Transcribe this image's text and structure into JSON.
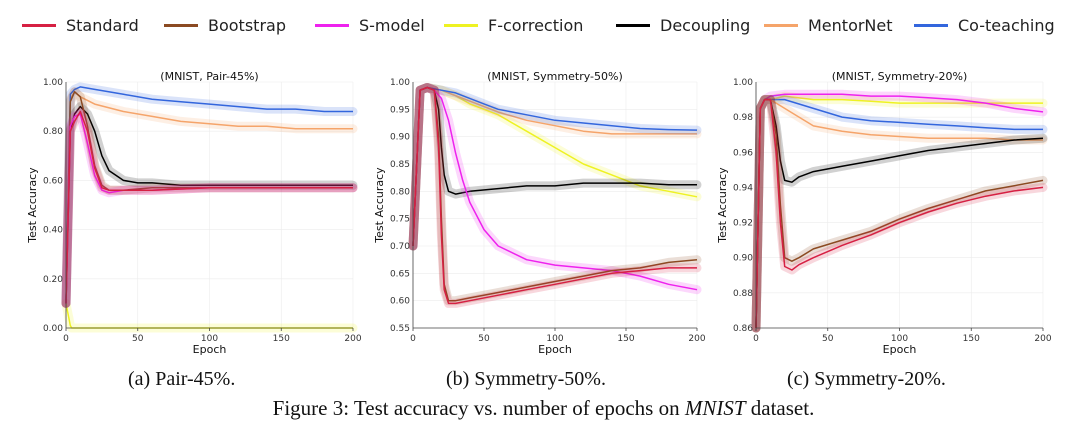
{
  "legend": {
    "items": [
      {
        "label": "Standard",
        "color": "#d62043"
      },
      {
        "label": "Bootstrap",
        "color": "#8b4a22"
      },
      {
        "label": "S-model",
        "color": "#ee22ee"
      },
      {
        "label": "F-correction",
        "color": "#eef222"
      },
      {
        "label": "Decoupling",
        "color": "#000000"
      },
      {
        "label": "MentorNet",
        "color": "#f5a46a"
      },
      {
        "label": "Co-teaching",
        "color": "#3366dd"
      }
    ]
  },
  "captions": {
    "a": "(a) Pair-45%.",
    "b": "(b) Symmetry-50%.",
    "c": "(c) Symmetry-20%.",
    "figure_prefix": "Figure 3: Test accuracy vs. number of epochs on ",
    "figure_dataset": "MNIST",
    "figure_suffix": " dataset."
  },
  "chart_data": [
    {
      "type": "line",
      "title": "(MNIST, Pair-45%)",
      "xlabel": "Epoch",
      "ylabel": "Test Accuracy",
      "xlim": [
        0,
        200
      ],
      "ylim": [
        0.0,
        1.0
      ],
      "xticks": [
        0,
        50,
        100,
        150,
        200
      ],
      "xtick_labels": [
        "0",
        "50",
        "100",
        "150",
        "200"
      ],
      "yticks": [
        0.0,
        0.2,
        0.4,
        0.6,
        0.8,
        1.0
      ],
      "ytick_labels": [
        "0.00",
        "0.20",
        "0.40",
        "0.60",
        "0.80",
        "1.00"
      ],
      "series": [
        {
          "name": "F-correction",
          "x": [
            0,
            1,
            2,
            3,
            4,
            5,
            200
          ],
          "y": [
            0.1,
            0.07,
            0.04,
            0.01,
            0.0,
            0.0,
            0.0
          ]
        },
        {
          "name": "MentorNet",
          "x": [
            0,
            3,
            6,
            10,
            20,
            40,
            60,
            80,
            100,
            120,
            140,
            160,
            180,
            200
          ],
          "y": [
            0.1,
            0.93,
            0.96,
            0.94,
            0.91,
            0.88,
            0.86,
            0.84,
            0.83,
            0.82,
            0.82,
            0.81,
            0.81,
            0.81
          ]
        },
        {
          "name": "Co-teaching",
          "x": [
            0,
            3,
            6,
            10,
            20,
            40,
            60,
            80,
            100,
            120,
            140,
            160,
            180,
            200
          ],
          "y": [
            0.1,
            0.95,
            0.97,
            0.98,
            0.97,
            0.95,
            0.93,
            0.92,
            0.91,
            0.9,
            0.89,
            0.89,
            0.88,
            0.88
          ]
        },
        {
          "name": "Decoupling",
          "x": [
            0,
            3,
            6,
            10,
            15,
            20,
            25,
            30,
            40,
            50,
            60,
            80,
            100,
            150,
            200
          ],
          "y": [
            0.1,
            0.8,
            0.87,
            0.9,
            0.87,
            0.8,
            0.7,
            0.64,
            0.6,
            0.59,
            0.59,
            0.58,
            0.58,
            0.58,
            0.58
          ]
        },
        {
          "name": "Bootstrap",
          "x": [
            0,
            3,
            6,
            10,
            15,
            20,
            25,
            30,
            40,
            60,
            100,
            150,
            200
          ],
          "y": [
            0.1,
            0.92,
            0.96,
            0.94,
            0.82,
            0.66,
            0.58,
            0.56,
            0.56,
            0.57,
            0.57,
            0.57,
            0.57
          ]
        },
        {
          "name": "S-model",
          "x": [
            0,
            3,
            6,
            10,
            15,
            20,
            25,
            30,
            40,
            60,
            100,
            150,
            200
          ],
          "y": [
            0.1,
            0.82,
            0.86,
            0.87,
            0.75,
            0.62,
            0.56,
            0.55,
            0.56,
            0.56,
            0.57,
            0.57,
            0.57
          ]
        },
        {
          "name": "Standard",
          "x": [
            0,
            3,
            6,
            10,
            15,
            20,
            25,
            30,
            40,
            60,
            100,
            150,
            200
          ],
          "y": [
            0.1,
            0.8,
            0.84,
            0.88,
            0.8,
            0.65,
            0.57,
            0.56,
            0.56,
            0.56,
            0.57,
            0.57,
            0.57
          ]
        }
      ]
    },
    {
      "type": "line",
      "title": "(MNIST, Symmetry-50%)",
      "xlabel": "Epoch",
      "ylabel": "Test Accuracy",
      "xlim": [
        0,
        200
      ],
      "ylim": [
        0.55,
        1.0
      ],
      "xticks": [
        0,
        50,
        100,
        150,
        200
      ],
      "xtick_labels": [
        "0",
        "50",
        "100",
        "150",
        "200"
      ],
      "yticks": [
        0.55,
        0.6,
        0.65,
        0.7,
        0.75,
        0.8,
        0.85,
        0.9,
        0.95,
        1.0
      ],
      "ytick_labels": [
        "0.55",
        "0.60",
        "0.65",
        "0.70",
        "0.75",
        "0.80",
        "0.85",
        "0.90",
        "0.95",
        "1.00"
      ],
      "series": [
        {
          "name": "F-correction",
          "x": [
            0,
            5,
            10,
            20,
            30,
            40,
            50,
            60,
            80,
            100,
            120,
            140,
            160,
            180,
            200
          ],
          "y": [
            0.7,
            0.985,
            0.99,
            0.985,
            0.975,
            0.96,
            0.95,
            0.94,
            0.91,
            0.88,
            0.85,
            0.83,
            0.81,
            0.8,
            0.79
          ]
        },
        {
          "name": "MentorNet",
          "x": [
            0,
            5,
            10,
            20,
            30,
            40,
            50,
            60,
            80,
            100,
            120,
            140,
            160,
            180,
            200
          ],
          "y": [
            0.7,
            0.985,
            0.99,
            0.985,
            0.975,
            0.965,
            0.955,
            0.945,
            0.93,
            0.92,
            0.91,
            0.905,
            0.905,
            0.905,
            0.905
          ]
        },
        {
          "name": "Co-teaching",
          "x": [
            0,
            5,
            10,
            20,
            30,
            40,
            50,
            60,
            80,
            100,
            120,
            140,
            160,
            180,
            200
          ],
          "y": [
            0.7,
            0.985,
            0.99,
            0.985,
            0.98,
            0.97,
            0.96,
            0.95,
            0.94,
            0.93,
            0.925,
            0.92,
            0.915,
            0.913,
            0.912
          ]
        },
        {
          "name": "Decoupling",
          "x": [
            0,
            5,
            10,
            15,
            18,
            20,
            22,
            25,
            30,
            40,
            60,
            80,
            100,
            120,
            140,
            160,
            180,
            200
          ],
          "y": [
            0.7,
            0.985,
            0.99,
            0.985,
            0.95,
            0.88,
            0.83,
            0.8,
            0.795,
            0.8,
            0.805,
            0.81,
            0.81,
            0.815,
            0.815,
            0.815,
            0.812,
            0.812
          ]
        },
        {
          "name": "S-model",
          "x": [
            0,
            5,
            10,
            15,
            20,
            25,
            30,
            35,
            40,
            50,
            60,
            80,
            100,
            120,
            140,
            160,
            180,
            200
          ],
          "y": [
            0.7,
            0.985,
            0.99,
            0.985,
            0.97,
            0.93,
            0.87,
            0.82,
            0.78,
            0.73,
            0.7,
            0.675,
            0.665,
            0.66,
            0.655,
            0.645,
            0.63,
            0.62
          ]
        },
        {
          "name": "Bootstrap",
          "x": [
            0,
            5,
            10,
            15,
            18,
            20,
            22,
            25,
            30,
            40,
            60,
            80,
            100,
            120,
            140,
            160,
            180,
            200
          ],
          "y": [
            0.7,
            0.985,
            0.99,
            0.985,
            0.9,
            0.75,
            0.63,
            0.6,
            0.6,
            0.605,
            0.615,
            0.625,
            0.635,
            0.645,
            0.655,
            0.66,
            0.67,
            0.675
          ]
        },
        {
          "name": "Standard",
          "x": [
            0,
            5,
            10,
            15,
            18,
            20,
            22,
            25,
            30,
            40,
            60,
            80,
            100,
            120,
            140,
            160,
            180,
            200
          ],
          "y": [
            0.7,
            0.985,
            0.99,
            0.985,
            0.88,
            0.72,
            0.62,
            0.595,
            0.595,
            0.6,
            0.61,
            0.62,
            0.63,
            0.64,
            0.65,
            0.655,
            0.66,
            0.66
          ]
        }
      ]
    },
    {
      "type": "line",
      "title": "(MNIST, Symmetry-20%)",
      "xlabel": "Epoch",
      "ylabel": "Test Accuracy",
      "xlim": [
        0,
        200
      ],
      "ylim": [
        0.86,
        1.0
      ],
      "xticks": [
        0,
        50,
        100,
        150,
        200
      ],
      "xtick_labels": [
        "0",
        "50",
        "100",
        "150",
        "200"
      ],
      "yticks": [
        0.86,
        0.88,
        0.9,
        0.92,
        0.94,
        0.96,
        0.98,
        1.0
      ],
      "ytick_labels": [
        "0.86",
        "0.88",
        "0.90",
        "0.92",
        "0.94",
        "0.96",
        "0.98",
        "1.00"
      ],
      "series": [
        {
          "name": "F-correction",
          "x": [
            0,
            3,
            6,
            10,
            20,
            40,
            60,
            80,
            100,
            120,
            140,
            160,
            180,
            200
          ],
          "y": [
            0.86,
            0.985,
            0.99,
            0.99,
            0.992,
            0.99,
            0.99,
            0.989,
            0.988,
            0.988,
            0.988,
            0.988,
            0.988,
            0.988
          ]
        },
        {
          "name": "S-model",
          "x": [
            0,
            3,
            6,
            10,
            20,
            40,
            60,
            80,
            100,
            120,
            140,
            160,
            180,
            200
          ],
          "y": [
            0.86,
            0.985,
            0.99,
            0.992,
            0.993,
            0.993,
            0.993,
            0.992,
            0.992,
            0.991,
            0.99,
            0.988,
            0.985,
            0.983
          ]
        },
        {
          "name": "Co-teaching",
          "x": [
            0,
            3,
            6,
            10,
            20,
            40,
            60,
            80,
            100,
            120,
            140,
            160,
            180,
            200
          ],
          "y": [
            0.86,
            0.985,
            0.99,
            0.99,
            0.99,
            0.985,
            0.98,
            0.978,
            0.977,
            0.976,
            0.975,
            0.974,
            0.973,
            0.973
          ]
        },
        {
          "name": "MentorNet",
          "x": [
            0,
            3,
            6,
            10,
            20,
            30,
            40,
            60,
            80,
            100,
            120,
            140,
            160,
            180,
            200
          ],
          "y": [
            0.86,
            0.985,
            0.99,
            0.99,
            0.985,
            0.98,
            0.975,
            0.972,
            0.97,
            0.969,
            0.968,
            0.968,
            0.968,
            0.967,
            0.967
          ]
        },
        {
          "name": "Decoupling",
          "x": [
            0,
            3,
            6,
            10,
            14,
            17,
            20,
            25,
            30,
            40,
            60,
            80,
            100,
            120,
            140,
            160,
            180,
            200
          ],
          "y": [
            0.86,
            0.985,
            0.99,
            0.99,
            0.975,
            0.955,
            0.944,
            0.943,
            0.946,
            0.949,
            0.952,
            0.955,
            0.958,
            0.961,
            0.963,
            0.965,
            0.967,
            0.968
          ]
        },
        {
          "name": "Bootstrap",
          "x": [
            0,
            3,
            6,
            10,
            14,
            17,
            20,
            25,
            30,
            40,
            60,
            80,
            100,
            120,
            140,
            160,
            180,
            200
          ],
          "y": [
            0.86,
            0.985,
            0.99,
            0.99,
            0.97,
            0.93,
            0.9,
            0.898,
            0.9,
            0.905,
            0.91,
            0.915,
            0.922,
            0.928,
            0.933,
            0.938,
            0.941,
            0.944
          ]
        },
        {
          "name": "Standard",
          "x": [
            0,
            3,
            6,
            10,
            14,
            17,
            20,
            25,
            30,
            40,
            60,
            80,
            100,
            120,
            140,
            160,
            180,
            200
          ],
          "y": [
            0.86,
            0.985,
            0.99,
            0.99,
            0.96,
            0.92,
            0.895,
            0.893,
            0.896,
            0.9,
            0.907,
            0.913,
            0.92,
            0.926,
            0.931,
            0.935,
            0.938,
            0.94
          ]
        }
      ]
    }
  ]
}
